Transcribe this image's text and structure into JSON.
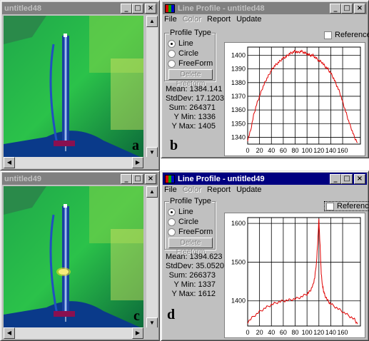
{
  "image_windows": [
    {
      "title": "untitled48",
      "letter": "a"
    },
    {
      "title": "untitled49",
      "letter": "c"
    }
  ],
  "profile_windows": [
    {
      "title": "Line Profile - untitled48",
      "active": false,
      "letter": "b",
      "menu": {
        "file": "File",
        "color": "Color",
        "report": "Report",
        "update": "Update"
      },
      "profile_type": {
        "label": "Profile Type",
        "options": [
          "Line",
          "Circle",
          "FreeForm"
        ],
        "selected": "Line",
        "delete_label": "Delete Freeform"
      },
      "reference_label": "Reference",
      "stats": {
        "mean": "Mean: 1384.141",
        "stddev": "StdDev: 17.12033",
        "sum": "Sum: 264371",
        "ymin": "Y Min: 1336",
        "ymax": "Y Max: 1405"
      },
      "chart_data": {
        "type": "line",
        "x": [
          0,
          5,
          10,
          15,
          20,
          25,
          30,
          35,
          40,
          45,
          50,
          55,
          60,
          65,
          70,
          75,
          80,
          85,
          90,
          95,
          100,
          105,
          110,
          115,
          120,
          125,
          130,
          135,
          140,
          145,
          150,
          155,
          160,
          165,
          170,
          175,
          180,
          185
        ],
        "values": [
          1338,
          1345,
          1356,
          1364,
          1370,
          1376,
          1381,
          1385,
          1389,
          1392,
          1394,
          1396,
          1398,
          1399,
          1401,
          1402,
          1403,
          1402,
          1403,
          1402,
          1401,
          1400,
          1400,
          1398,
          1396,
          1395,
          1392,
          1390,
          1387,
          1383,
          1378,
          1373,
          1366,
          1359,
          1352,
          1346,
          1340,
          1336
        ],
        "xticks": [
          "0",
          "20",
          "40",
          "60",
          "80",
          "100",
          "120",
          "140",
          "160"
        ],
        "yticks": [
          "1340",
          "1350",
          "1360",
          "1370",
          "1380",
          "1390",
          "1400"
        ],
        "xlim": [
          0,
          190
        ],
        "ylim": [
          1335,
          1406
        ],
        "grid": true,
        "color": "#e00000"
      }
    },
    {
      "title": "Line Profile - untitled49",
      "active": true,
      "letter": "d",
      "menu": {
        "file": "File",
        "color": "Color",
        "report": "Report",
        "update": "Update"
      },
      "profile_type": {
        "label": "Profile Type",
        "options": [
          "Line",
          "Circle",
          "FreeForm"
        ],
        "selected": "Line",
        "delete_label": "Delete Freeform"
      },
      "reference_label": "Reference",
      "stats": {
        "mean": "Mean: 1394.623",
        "stddev": "StdDev: 35.05201",
        "sum": "Sum: 266373",
        "ymin": "Y Min: 1337",
        "ymax": "Y Max: 1612"
      },
      "chart_data": {
        "type": "line",
        "x": [
          0,
          10,
          20,
          30,
          40,
          50,
          60,
          70,
          80,
          90,
          100,
          105,
          110,
          113,
          116,
          118,
          120,
          122,
          124,
          126,
          128,
          130,
          135,
          140,
          150,
          160,
          170,
          180,
          185
        ],
        "values": [
          1345,
          1360,
          1372,
          1382,
          1390,
          1396,
          1400,
          1402,
          1405,
          1410,
          1418,
          1425,
          1440,
          1460,
          1500,
          1550,
          1612,
          1540,
          1470,
          1440,
          1425,
          1415,
          1400,
          1392,
          1382,
          1372,
          1362,
          1352,
          1340
        ],
        "xticks": [
          "0",
          "20",
          "40",
          "60",
          "80",
          "100",
          "120",
          "140",
          "160"
        ],
        "yticks": [
          "1400",
          "1500",
          "1600"
        ],
        "xlim": [
          0,
          190
        ],
        "ylim": [
          1335,
          1615
        ],
        "grid": true,
        "color": "#e00000"
      }
    }
  ]
}
